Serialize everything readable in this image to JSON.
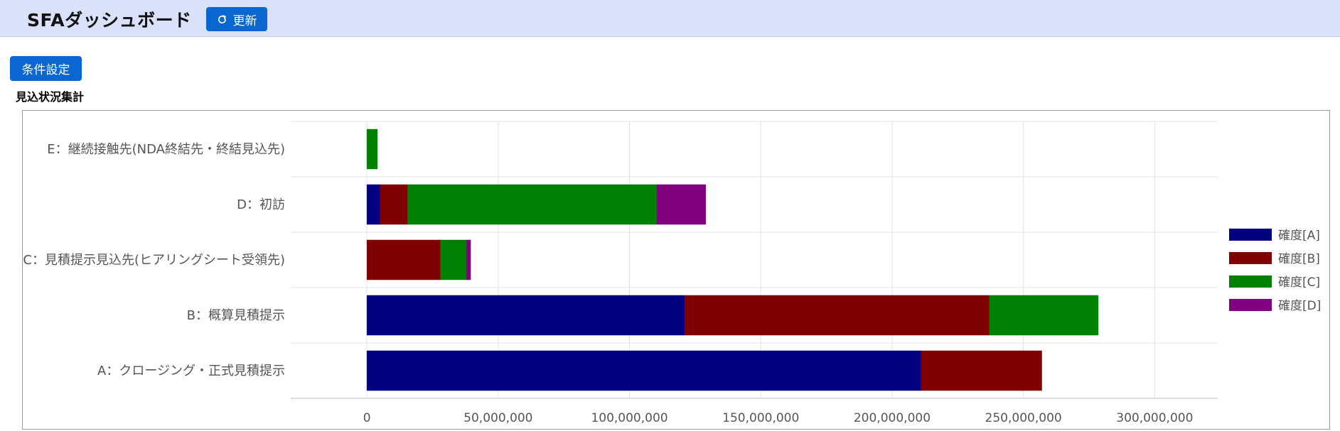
{
  "header": {
    "title": "SFAダッシュボード",
    "refresh_label": "更新"
  },
  "controls": {
    "condition_label": "条件設定"
  },
  "section": {
    "title": "見込状況集計"
  },
  "colors": {
    "header_bg": "#d9e1fb",
    "button": "#0a66d1"
  },
  "chart_data": {
    "type": "bar",
    "orientation": "horizontal",
    "stacked": true,
    "categories": [
      "E：継続接触先(NDA終結先・終結見込先)",
      "D：初訪",
      "C：見積提示見込先(ヒアリングシート受領先)",
      "B：概算見積提示",
      "A：クロージング・正式見積提示"
    ],
    "series": [
      {
        "name": "確度[A]",
        "color": "#000080",
        "values": [
          0,
          5000000,
          0,
          121000000,
          211000000
        ]
      },
      {
        "name": "確度[B]",
        "color": "#800000",
        "values": [
          0,
          10500000,
          28000000,
          116000000,
          46000000
        ]
      },
      {
        "name": "確度[C]",
        "color": "#008000",
        "values": [
          4000000,
          95000000,
          10000000,
          41500000,
          0
        ]
      },
      {
        "name": "確度[D]",
        "color": "#800080",
        "values": [
          0,
          18500000,
          1500000,
          0,
          0
        ]
      }
    ],
    "xlim": [
      -29000000,
      324000000
    ],
    "xticks": [
      0,
      50000000,
      100000000,
      150000000,
      200000000,
      250000000,
      300000000
    ],
    "xtick_labels": [
      "0",
      "50,000,000",
      "100,000,000",
      "150,000,000",
      "200,000,000",
      "250,000,000",
      "300,000,000"
    ],
    "grid": true,
    "legend": "right"
  }
}
